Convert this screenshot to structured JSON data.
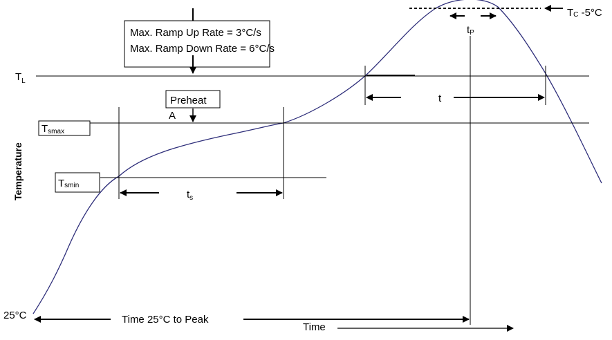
{
  "diagram": {
    "ramp_box": {
      "line1": "Max. Ramp Up Rate = 3°C/s",
      "line2": "Max. Ramp Down Rate = 6°C/s"
    },
    "preheat_box": {
      "label": "Preheat",
      "marker": "A"
    },
    "temperature_levels": {
      "tl_main": "T",
      "tl_sub": "L",
      "tsmax_main": "T",
      "tsmax_sub": "smax",
      "tsmin_main": "T",
      "tsmin_sub": "smin",
      "tc_main": "T",
      "tc_sub": "C",
      "tc_suffix": " -5°C",
      "start": "25°C"
    },
    "intervals": {
      "tp_main": "t",
      "tp_sub": "P",
      "t": "t",
      "ts_main": "t",
      "ts_sub": "s",
      "peak_time": "Time 25°C to Peak"
    },
    "axes": {
      "y_label": "Temperature",
      "x_label": "Time"
    },
    "colors": {
      "curve": "#2e2e7a",
      "lines": "#000000"
    }
  }
}
